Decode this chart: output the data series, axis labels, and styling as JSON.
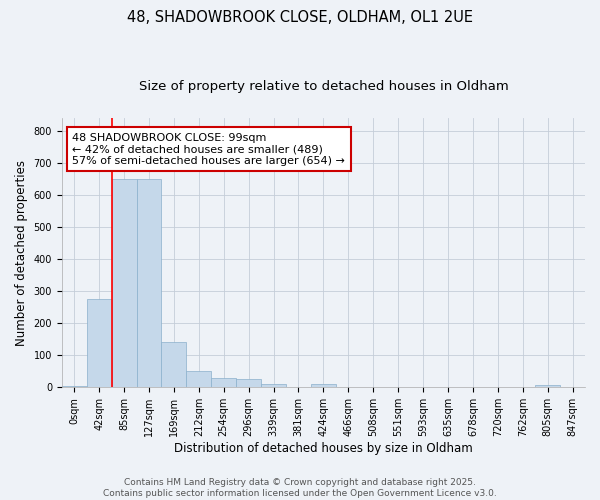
{
  "title_line1": "48, SHADOWBROOK CLOSE, OLDHAM, OL1 2UE",
  "title_line2": "Size of property relative to detached houses in Oldham",
  "xlabel": "Distribution of detached houses by size in Oldham",
  "ylabel": "Number of detached properties",
  "footer1": "Contains HM Land Registry data © Crown copyright and database right 2025.",
  "footer2": "Contains public sector information licensed under the Open Government Licence v3.0.",
  "annotation_line1": "48 SHADOWBROOK CLOSE: 99sqm",
  "annotation_line2": "← 42% of detached houses are smaller (489)",
  "annotation_line3": "57% of semi-detached houses are larger (654) →",
  "bar_labels": [
    "0sqm",
    "42sqm",
    "85sqm",
    "127sqm",
    "169sqm",
    "212sqm",
    "254sqm",
    "296sqm",
    "339sqm",
    "381sqm",
    "424sqm",
    "466sqm",
    "508sqm",
    "551sqm",
    "593sqm",
    "635sqm",
    "678sqm",
    "720sqm",
    "762sqm",
    "805sqm",
    "847sqm"
  ],
  "bar_values": [
    5,
    275,
    650,
    650,
    140,
    50,
    30,
    25,
    10,
    0,
    10,
    0,
    0,
    0,
    0,
    0,
    0,
    0,
    0,
    8,
    2
  ],
  "bar_color": "#c5d8ea",
  "bar_edge_color": "#8ab0cc",
  "red_line_x": 1.5,
  "ylim": [
    0,
    840
  ],
  "yticks": [
    0,
    100,
    200,
    300,
    400,
    500,
    600,
    700,
    800
  ],
  "bg_color": "#eef2f7",
  "grid_color": "#c5cdd8",
  "annotation_box_color": "#ffffff",
  "annotation_box_edge": "#cc0000",
  "title_fontsize": 10.5,
  "subtitle_fontsize": 9.5,
  "axis_label_fontsize": 8.5,
  "tick_fontsize": 7,
  "annotation_fontsize": 8,
  "footer_fontsize": 6.5
}
